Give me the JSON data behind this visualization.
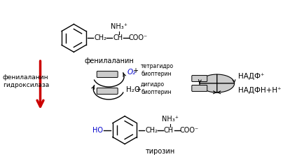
{
  "bg_color": "#ffffff",
  "figsize": [
    4.35,
    2.34
  ],
  "dpi": 100,
  "phenylalanine_label": "фенилаланин",
  "tyrosine_label": "тирозин",
  "enzyme_label": "фенилаланин\nгидроксилаза",
  "o2_label": "O₂",
  "h2o_label": "H₂O",
  "tetra_label": "тетрагидро\nбиоптерин",
  "dihydro_label": "дигидро\nбиоптерин",
  "nadp_label": "НАДФ⁺",
  "nadph_label": "НАДФН+Н⁺",
  "blue_color": "#0000cc",
  "red_color": "#cc0000",
  "black_color": "#000000",
  "gray_color": "#aaaaaa"
}
